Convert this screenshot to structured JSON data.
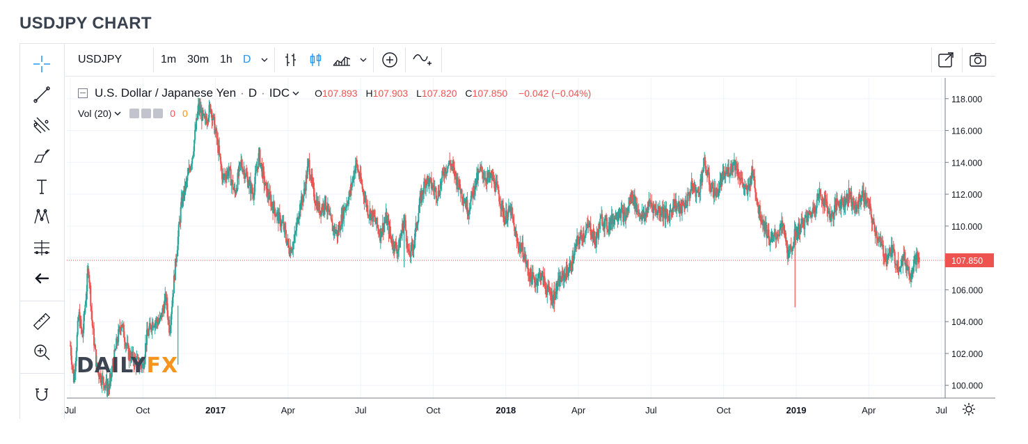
{
  "page_title": "USDJPY CHART",
  "toolbar": {
    "symbol": "USDJPY",
    "intervals": [
      "1m",
      "30m",
      "1h",
      "D"
    ],
    "active_interval": "D"
  },
  "legend": {
    "symbol_name": "U.S. Dollar / Japanese Yen",
    "separator": "·",
    "interval": "D",
    "source": "IDC",
    "open_label": "O",
    "open": "107.893",
    "high_label": "H",
    "high": "107.903",
    "low_label": "L",
    "low": "107.820",
    "close_label": "C",
    "close": "107.850",
    "change": "−0.042 (−0.04%)"
  },
  "volume_legend": {
    "label": "Vol (20)",
    "value1": "0",
    "value2": "0"
  },
  "watermark": {
    "part1": "DAILY",
    "part2": "FX"
  },
  "colors": {
    "up": "#26a69a",
    "down": "#ef5350",
    "price_line": "#ef5350",
    "watermark_dark": "#3d4553",
    "watermark_accent": "#f7941d",
    "accent": "#2196f3"
  },
  "chart_data": {
    "type": "candlestick",
    "series_name": "USDJPY",
    "y_ticks": [
      "100.000",
      "102.000",
      "104.000",
      "106.000",
      "108.000",
      "110.000",
      "112.000",
      "114.000",
      "116.000",
      "118.000"
    ],
    "ylim": [
      99.2,
      119.3
    ],
    "x_ticks": [
      {
        "label": "Jul",
        "t": 0,
        "bold": false
      },
      {
        "label": "Oct",
        "t": 3,
        "bold": false
      },
      {
        "label": "2017",
        "t": 6,
        "bold": true
      },
      {
        "label": "Apr",
        "t": 9,
        "bold": false
      },
      {
        "label": "Jul",
        "t": 12,
        "bold": false
      },
      {
        "label": "Oct",
        "t": 15,
        "bold": false
      },
      {
        "label": "2018",
        "t": 18,
        "bold": true
      },
      {
        "label": "Apr",
        "t": 21,
        "bold": false
      },
      {
        "label": "Jul",
        "t": 24,
        "bold": false
      },
      {
        "label": "Oct",
        "t": 27,
        "bold": false
      },
      {
        "label": "2019",
        "t": 30,
        "bold": true
      },
      {
        "label": "Apr",
        "t": 33,
        "bold": false
      },
      {
        "label": "Jul",
        "t": 36,
        "bold": false
      }
    ],
    "last_price": 107.85,
    "last_price_label": "107.850",
    "price_path": [
      [
        0.0,
        102.5
      ],
      [
        0.15,
        100.3
      ],
      [
        0.35,
        104.5
      ],
      [
        0.5,
        103.0
      ],
      [
        0.75,
        107.5
      ],
      [
        0.9,
        104.0
      ],
      [
        1.1,
        101.0
      ],
      [
        1.35,
        100.3
      ],
      [
        1.6,
        99.8
      ],
      [
        1.9,
        102.5
      ],
      [
        2.1,
        104.0
      ],
      [
        2.4,
        102.0
      ],
      [
        2.7,
        101.5
      ],
      [
        3.0,
        101.2
      ],
      [
        3.15,
        103.0
      ],
      [
        3.4,
        104.0
      ],
      [
        3.7,
        104.0
      ],
      [
        3.95,
        105.5
      ],
      [
        4.1,
        103.5
      ],
      [
        4.4,
        108.5
      ],
      [
        4.6,
        111.5
      ],
      [
        4.85,
        113.0
      ],
      [
        5.05,
        114.5
      ],
      [
        5.3,
        117.5
      ],
      [
        5.55,
        116.5
      ],
      [
        5.8,
        117.5
      ],
      [
        6.05,
        115.5
      ],
      [
        6.3,
        113.0
      ],
      [
        6.55,
        113.5
      ],
      [
        6.8,
        112.0
      ],
      [
        7.05,
        114.0
      ],
      [
        7.3,
        113.0
      ],
      [
        7.55,
        112.0
      ],
      [
        7.8,
        114.5
      ],
      [
        8.05,
        112.5
      ],
      [
        8.3,
        111.5
      ],
      [
        8.6,
        110.5
      ],
      [
        8.8,
        110.0
      ],
      [
        9.05,
        108.5
      ],
      [
        9.25,
        109.0
      ],
      [
        9.45,
        111.0
      ],
      [
        9.65,
        112.0
      ],
      [
        9.85,
        114.0
      ],
      [
        10.05,
        112.0
      ],
      [
        10.3,
        111.0
      ],
      [
        10.55,
        111.5
      ],
      [
        10.8,
        110.0
      ],
      [
        11.05,
        109.5
      ],
      [
        11.3,
        111.0
      ],
      [
        11.55,
        112.0
      ],
      [
        11.8,
        114.0
      ],
      [
        12.05,
        112.5
      ],
      [
        12.3,
        111.0
      ],
      [
        12.55,
        110.5
      ],
      [
        12.8,
        109.5
      ],
      [
        13.05,
        110.5
      ],
      [
        13.3,
        109.0
      ],
      [
        13.55,
        108.5
      ],
      [
        13.8,
        110.5
      ],
      [
        14.0,
        108.0
      ],
      [
        14.2,
        109.0
      ],
      [
        14.45,
        111.5
      ],
      [
        14.7,
        113.0
      ],
      [
        14.95,
        112.5
      ],
      [
        15.2,
        112.0
      ],
      [
        15.45,
        113.5
      ],
      [
        15.7,
        114.0
      ],
      [
        15.95,
        113.0
      ],
      [
        16.2,
        112.0
      ],
      [
        16.45,
        111.0
      ],
      [
        16.7,
        112.5
      ],
      [
        16.95,
        113.5
      ],
      [
        17.2,
        113.0
      ],
      [
        17.45,
        113.0
      ],
      [
        17.7,
        112.0
      ],
      [
        17.95,
        110.5
      ],
      [
        18.2,
        111.0
      ],
      [
        18.45,
        109.0
      ],
      [
        18.7,
        108.5
      ],
      [
        18.95,
        107.0
      ],
      [
        19.2,
        106.5
      ],
      [
        19.45,
        107.0
      ],
      [
        19.7,
        106.0
      ],
      [
        19.95,
        105.5
      ],
      [
        20.2,
        106.5
      ],
      [
        20.45,
        107.0
      ],
      [
        20.7,
        107.5
      ],
      [
        20.95,
        109.0
      ],
      [
        21.2,
        109.5
      ],
      [
        21.45,
        110.0
      ],
      [
        21.7,
        109.0
      ],
      [
        21.95,
        110.5
      ],
      [
        22.2,
        110.0
      ],
      [
        22.45,
        110.5
      ],
      [
        22.7,
        111.0
      ],
      [
        22.95,
        110.5
      ],
      [
        23.2,
        112.0
      ],
      [
        23.45,
        111.0
      ],
      [
        23.7,
        110.5
      ],
      [
        23.95,
        111.5
      ],
      [
        24.2,
        111.0
      ],
      [
        24.45,
        111.0
      ],
      [
        24.7,
        110.5
      ],
      [
        24.95,
        111.5
      ],
      [
        25.2,
        111.0
      ],
      [
        25.45,
        111.5
      ],
      [
        25.7,
        112.5
      ],
      [
        25.95,
        112.0
      ],
      [
        26.2,
        114.0
      ],
      [
        26.45,
        112.5
      ],
      [
        26.7,
        112.0
      ],
      [
        26.95,
        113.0
      ],
      [
        27.2,
        113.5
      ],
      [
        27.45,
        114.0
      ],
      [
        27.7,
        113.0
      ],
      [
        27.95,
        112.0
      ],
      [
        28.2,
        113.5
      ],
      [
        28.45,
        111.0
      ],
      [
        28.7,
        110.0
      ],
      [
        28.95,
        109.0
      ],
      [
        29.2,
        109.5
      ],
      [
        29.45,
        110.0
      ],
      [
        29.7,
        108.0
      ],
      [
        29.95,
        109.5
      ],
      [
        30.2,
        110.0
      ],
      [
        30.45,
        110.5
      ],
      [
        30.7,
        111.0
      ],
      [
        30.95,
        112.0
      ],
      [
        31.2,
        111.5
      ],
      [
        31.45,
        110.5
      ],
      [
        31.7,
        111.5
      ],
      [
        31.95,
        111.5
      ],
      [
        32.2,
        112.0
      ],
      [
        32.45,
        111.0
      ],
      [
        32.7,
        112.0
      ],
      [
        32.95,
        111.5
      ],
      [
        33.2,
        110.0
      ],
      [
        33.45,
        109.0
      ],
      [
        33.7,
        108.0
      ],
      [
        33.95,
        108.5
      ],
      [
        34.2,
        107.5
      ],
      [
        34.45,
        108.0
      ],
      [
        34.7,
        107.0
      ],
      [
        34.95,
        108.0
      ],
      [
        35.1,
        107.85
      ]
    ],
    "spikes": [
      {
        "t": 4.45,
        "low": 101.3,
        "high": 105.0
      },
      {
        "t": 20.0,
        "low": 104.6,
        "high": 106.5
      },
      {
        "t": 29.95,
        "low": 104.9,
        "high": 109.7
      },
      {
        "t": 13.8,
        "low": 107.4,
        "high": 110.0
      }
    ]
  }
}
